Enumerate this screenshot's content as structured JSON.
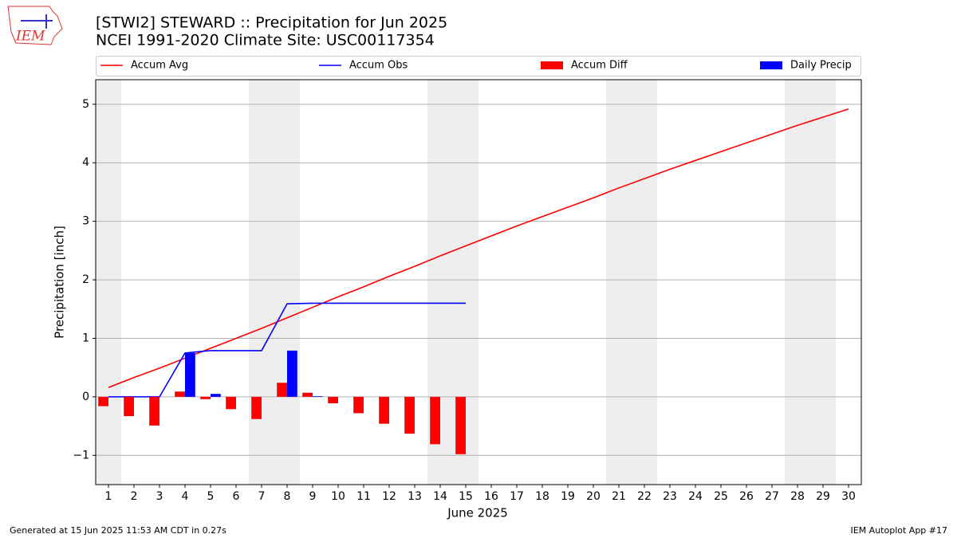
{
  "chart_data": {
    "type": "line",
    "title": "[STWI2] STEWARD :: Precipitation for Jun 2025",
    "subtitle": "NCEI 1991-2020 Climate Site: USC00117354",
    "ylabel": "Precipitation [inch]",
    "xlabel": "June 2025",
    "logo_text": "IEM",
    "footer_left": "Generated at 15 Jun 2025 11:53 AM CDT in 0.27s",
    "footer_right": "IEM Autoplot App #17",
    "x": [
      1,
      2,
      3,
      4,
      5,
      6,
      7,
      8,
      9,
      10,
      11,
      12,
      13,
      14,
      15,
      16,
      17,
      18,
      19,
      20,
      21,
      22,
      23,
      24,
      25,
      26,
      27,
      28,
      29,
      30
    ],
    "xlim": [
      0.5,
      30.5
    ],
    "xticks": [
      1,
      2,
      3,
      4,
      5,
      6,
      7,
      8,
      9,
      10,
      11,
      12,
      13,
      14,
      15,
      16,
      17,
      18,
      19,
      20,
      21,
      22,
      23,
      24,
      25,
      26,
      27,
      28,
      29,
      30
    ],
    "ylim": [
      -1.5,
      5.42
    ],
    "yticks": [
      {
        "value": -1,
        "label": "−1"
      },
      0,
      1,
      2,
      3,
      4,
      5
    ],
    "grid": true,
    "shaded_spans": [
      [
        0.5,
        1.5
      ],
      [
        6.5,
        8.5
      ],
      [
        13.5,
        15.5
      ],
      [
        20.5,
        22.5
      ],
      [
        27.5,
        29.5
      ]
    ],
    "shade_color": "#eeeeee",
    "series": [
      {
        "name": "Accum Avg",
        "type": "line",
        "color": "#ff0000",
        "values": [
          0.16,
          0.33,
          0.49,
          0.66,
          0.83,
          1.0,
          1.17,
          1.35,
          1.53,
          1.71,
          1.88,
          2.06,
          2.23,
          2.41,
          2.58,
          2.75,
          2.92,
          3.08,
          3.24,
          3.4,
          3.57,
          3.73,
          3.89,
          4.04,
          4.19,
          4.34,
          4.49,
          4.64,
          4.78,
          4.92
        ]
      },
      {
        "name": "Accum Obs",
        "type": "line",
        "color": "#0000ff",
        "values": [
          0,
          0,
          0,
          0.75,
          0.79,
          0.79,
          0.79,
          1.59,
          1.6,
          1.6,
          1.6,
          1.6,
          1.6,
          1.6,
          1.6,
          null,
          null,
          null,
          null,
          null,
          null,
          null,
          null,
          null,
          null,
          null,
          null,
          null,
          null,
          null
        ]
      },
      {
        "name": "Accum Diff",
        "type": "bar",
        "color": "#ff0000",
        "values": [
          -0.16,
          -0.33,
          -0.49,
          0.09,
          -0.04,
          -0.21,
          -0.38,
          0.24,
          0.07,
          -0.11,
          -0.28,
          -0.46,
          -0.63,
          -0.81,
          -0.98,
          null,
          null,
          null,
          null,
          null,
          null,
          null,
          null,
          null,
          null,
          null,
          null,
          null,
          null,
          null
        ]
      },
      {
        "name": "Daily Precip",
        "type": "bar",
        "color": "#0000ff",
        "values": [
          0,
          0,
          0,
          0.75,
          0.05,
          0,
          0,
          0.79,
          0.01,
          0,
          0,
          0,
          0,
          0,
          0,
          null,
          null,
          null,
          null,
          null,
          null,
          null,
          null,
          null,
          null,
          null,
          null,
          null,
          null,
          null
        ]
      }
    ]
  }
}
